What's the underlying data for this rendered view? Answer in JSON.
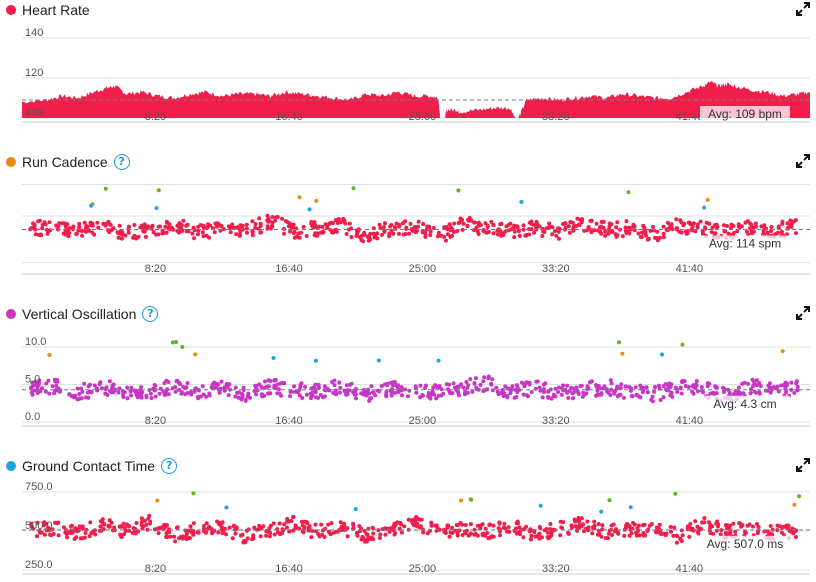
{
  "colors": {
    "heart": "#f01e49",
    "cadence": "#ee8a14",
    "vosc": "#c935c4",
    "gct": "#1ea6e3",
    "green": "#5fb628",
    "grid": "#dde1e4",
    "avgline": "#6d7f8e",
    "label": "#555555"
  },
  "x_axis": {
    "ticks": [
      {
        "x": 8.33,
        "label": "8:20"
      },
      {
        "x": 16.67,
        "label": "16:40"
      },
      {
        "x": 25.0,
        "label": "25:00"
      },
      {
        "x": 33.33,
        "label": "33:20"
      },
      {
        "x": 41.67,
        "label": "41:40"
      }
    ],
    "xlim": [
      0,
      49.2
    ]
  },
  "panels": [
    {
      "key": "heart",
      "title": "Heart Rate",
      "icon": "expand-icon",
      "help": false,
      "color": "heart"
    },
    {
      "key": "cadence",
      "title": "Run Cadence",
      "icon": "expand-icon",
      "help": true,
      "color": "cadence"
    },
    {
      "key": "vosc",
      "title": "Vertical Oscillation",
      "icon": "expand-icon",
      "help": true,
      "color": "vosc"
    },
    {
      "key": "gct",
      "title": "Ground Contact Time",
      "icon": "expand-icon",
      "help": true,
      "color": "gct"
    }
  ],
  "chart_data": [
    {
      "type": "area",
      "title": "Heart Rate",
      "ylim": [
        100,
        145
      ],
      "y_ticks": [
        {
          "value": 140,
          "label": "140"
        },
        {
          "value": 120,
          "label": "120"
        },
        {
          "value": 100,
          "label": "100"
        }
      ],
      "average": {
        "value": 109,
        "label": "Avg: 109 bpm"
      },
      "series": [
        {
          "x": [
            0.0,
            1.5,
            2.5,
            3.5,
            4.5,
            5.3,
            5.8,
            6.5,
            7.5,
            8.5,
            9.5,
            10.5,
            11.5,
            12.5,
            13.5,
            14.5,
            15.5,
            16.5,
            17.5,
            18.5,
            19.5,
            20.5,
            21.5,
            22.5,
            23.5,
            24.5,
            25.5,
            26.0,
            26.1,
            26.4,
            26.5,
            27.2,
            27.3,
            28.5,
            29.5,
            30.5,
            30.8,
            31.0,
            31.5,
            32.5,
            33.5,
            34.5,
            35.5,
            36.5,
            37.5,
            38.5,
            39.5,
            40.5,
            41.5,
            42.5,
            43.0,
            43.5,
            44.0,
            44.5,
            45.5,
            46.5,
            47.5,
            48.5,
            49.2
          ],
          "values": [
            108,
            109,
            111,
            110,
            113,
            115,
            116,
            112,
            113,
            111,
            110,
            112,
            113,
            111,
            112,
            112,
            111,
            113,
            112,
            111,
            110,
            109,
            112,
            111,
            113,
            111,
            111,
            110,
            100,
            100,
            104,
            104,
            103,
            104,
            105,
            105,
            100,
            100,
            109,
            110,
            109,
            110,
            111,
            110,
            112,
            111,
            110,
            110,
            113,
            116,
            118,
            116,
            117,
            116,
            114,
            113,
            111,
            112,
            113
          ]
        }
      ]
    },
    {
      "type": "scatter",
      "title": "Run Cadence",
      "ylim": [
        60,
        180
      ],
      "y_ticks": [],
      "average": {
        "value": 114,
        "label": "Avg: 114 spm"
      },
      "series": [
        {
          "name": "",
          "color": "heart",
          "x": [
            0.5,
            2.0,
            3.5,
            5.0,
            6.5,
            8.0,
            9.5,
            11.0,
            12.5,
            14.0,
            15.5,
            17.0,
            18.5,
            20.0,
            21.5,
            23.0,
            24.5,
            26.0,
            27.5,
            29.0,
            30.5,
            32.0,
            33.5,
            35.0,
            36.5,
            38.0,
            39.5,
            41.0,
            42.5,
            44.0,
            45.5,
            47.0,
            48.5
          ],
          "values": [
            115,
            118,
            112,
            120,
            108,
            114,
            121,
            110,
            117,
            113,
            125,
            111,
            116,
            119,
            106,
            114,
            118,
            103,
            122,
            115,
            112,
            117,
            109,
            121,
            113,
            116,
            108,
            119,
            114,
            111,
            116,
            113,
            118
          ]
        }
      ]
    },
    {
      "type": "scatter",
      "title": "Vertical Oscillation",
      "ylim": [
        0,
        12
      ],
      "y_ticks": [
        {
          "value": 10,
          "label": "10.0"
        },
        {
          "value": 5,
          "label": "5.0"
        },
        {
          "value": 0,
          "label": "0.0"
        }
      ],
      "average": {
        "value": 4.3,
        "label": "Avg: 4.3 cm"
      },
      "series": [
        {
          "name": "",
          "color": "vosc",
          "x": [
            0.5,
            2.0,
            3.5,
            5.0,
            6.5,
            8.0,
            9.5,
            11.0,
            12.5,
            14.0,
            15.5,
            17.0,
            18.5,
            20.0,
            21.5,
            23.0,
            24.5,
            26.0,
            27.5,
            29.0,
            30.5,
            32.0,
            33.5,
            35.0,
            36.5,
            38.0,
            39.5,
            41.0,
            42.5,
            44.0,
            45.5,
            47.0,
            48.5
          ],
          "values": [
            4.4,
            4.8,
            3.9,
            4.6,
            4.2,
            3.7,
            4.9,
            4.1,
            4.5,
            3.8,
            4.7,
            4.3,
            4.0,
            4.8,
            3.6,
            4.4,
            4.2,
            3.9,
            4.6,
            5.2,
            4.1,
            4.5,
            3.8,
            4.3,
            4.7,
            4.0,
            3.7,
            4.6,
            4.4,
            3.5,
            4.8,
            4.2,
            4.5
          ]
        }
      ]
    },
    {
      "type": "scatter",
      "title": "Ground Contact Time",
      "ylim": [
        250,
        800
      ],
      "y_ticks": [
        {
          "value": 750,
          "label": "750.0"
        },
        {
          "value": 500,
          "label": "500.0"
        },
        {
          "value": 250,
          "label": "250.0"
        }
      ],
      "average": {
        "value": 507,
        "label": "Avg: 507.0 ms"
      },
      "series": [
        {
          "name": "",
          "color": "heart",
          "x": [
            0.5,
            2.0,
            3.5,
            5.0,
            6.5,
            8.0,
            9.5,
            11.0,
            12.5,
            14.0,
            15.5,
            17.0,
            18.5,
            20.0,
            21.5,
            23.0,
            24.5,
            26.0,
            27.5,
            29.0,
            30.5,
            32.0,
            33.5,
            35.0,
            36.5,
            38.0,
            39.5,
            41.0,
            42.5,
            44.0,
            45.5,
            47.0,
            48.5
          ],
          "values": [
            505,
            520,
            480,
            540,
            495,
            560,
            470,
            515,
            530,
            460,
            510,
            545,
            490,
            525,
            470,
            505,
            560,
            485,
            515,
            495,
            530,
            475,
            510,
            545,
            490,
            505,
            520,
            465,
            540,
            500,
            515,
            485,
            510
          ]
        }
      ]
    }
  ]
}
